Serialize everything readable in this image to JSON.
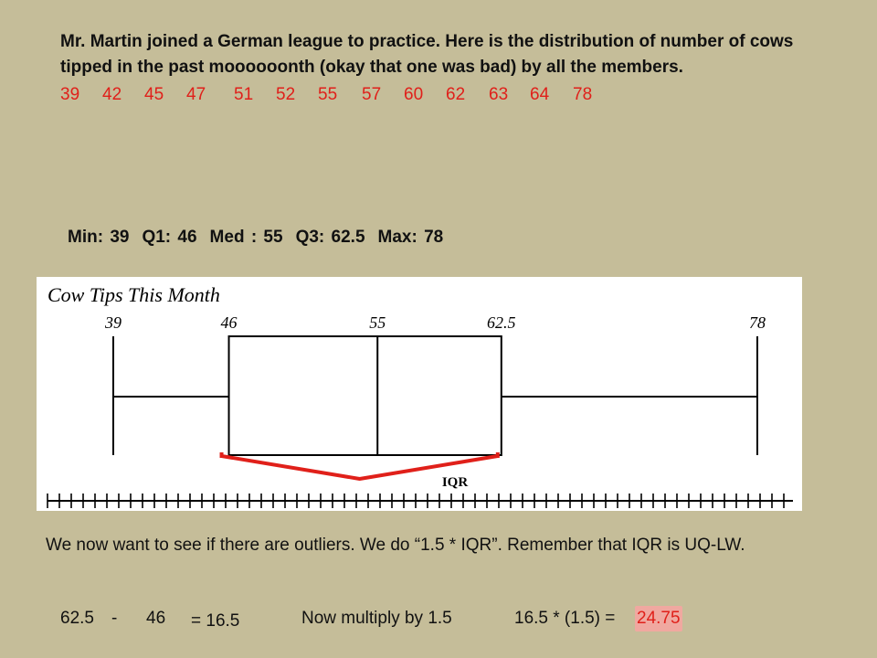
{
  "intro": "Mr. Martin joined a German league to practice. Here is the distribution of number of cows tipped in the past moooooonth (okay that one was bad) by all the members.",
  "data_values": [
    "39",
    "42",
    "45",
    "47",
    "51",
    "52",
    "55",
    "57",
    "60",
    "62",
    "63",
    "64",
    "78"
  ],
  "summary": {
    "min": "Min: 39",
    "q1": "Q1: 46",
    "med": "Med : 55",
    "q3": "Q3: 62.5",
    "max": "Max: 78"
  },
  "chart_data": {
    "type": "boxplot",
    "title": "Cow Tips This Month",
    "min": 39,
    "q1": 46,
    "median": 55,
    "q3": 62.5,
    "max": 78,
    "tick_labels": [
      "39",
      "46",
      "55",
      "62.5",
      "78"
    ],
    "annotation": "IQR",
    "colors": {
      "bracket": "#e0201a",
      "line": "#000000"
    }
  },
  "explain": "We now want to see if there are outliers. We do “1.5 * IQR”. Remember that IQR is UQ-LW.",
  "calc": {
    "a": "62.5",
    "minus": "-",
    "b": "46",
    "result": "= 16.5",
    "multiply_text": "Now multiply by 1.5",
    "product_expr": "16.5 * (1.5) =",
    "product_value": "24.75"
  }
}
